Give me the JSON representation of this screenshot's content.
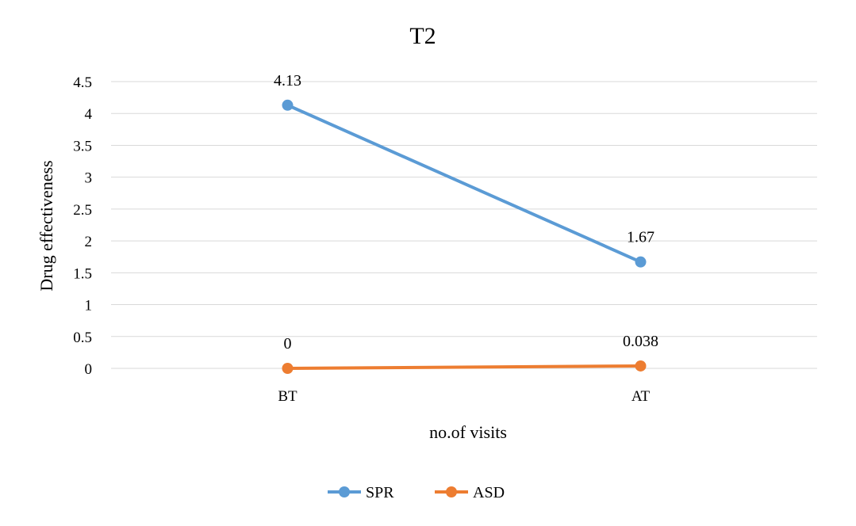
{
  "chart_data": {
    "type": "line",
    "title": "T2",
    "xlabel": "no.of visits",
    "ylabel": "Drug effectiveness",
    "categories": [
      "BT",
      "AT"
    ],
    "ylim": [
      0,
      4.5
    ],
    "yticks": [
      "0",
      "0.5",
      "1",
      "1.5",
      "2",
      "2.5",
      "3",
      "3.5",
      "4",
      "4.5"
    ],
    "grid": true,
    "legend_position": "bottom",
    "series": [
      {
        "name": "SPR",
        "values": [
          4.13,
          1.67
        ],
        "labels": [
          "4.13",
          "1.67"
        ],
        "color": "#5b9bd5"
      },
      {
        "name": "ASD",
        "values": [
          0,
          0.038
        ],
        "labels": [
          "0",
          "0.038"
        ],
        "color": "#ed7d31"
      }
    ]
  }
}
